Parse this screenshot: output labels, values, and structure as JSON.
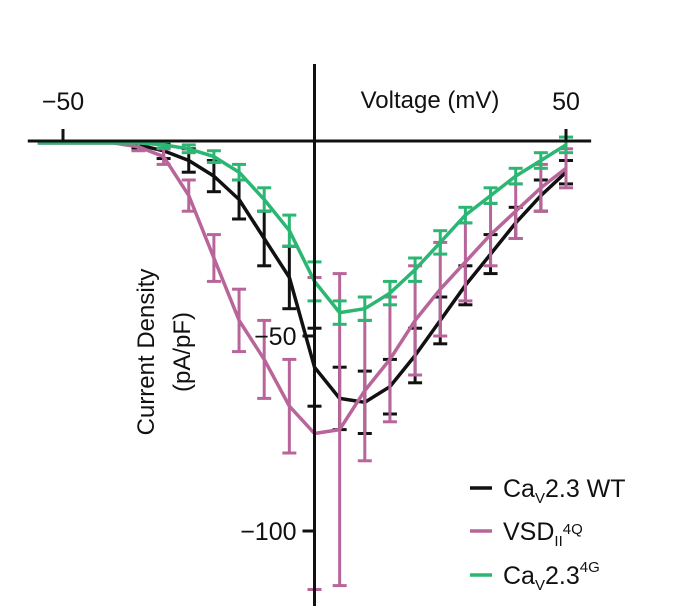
{
  "chart_data": {
    "type": "line",
    "xlabel": "Voltage (mV)",
    "ylabel_lines": [
      "Current Density",
      "(pA/pF)"
    ],
    "xlim": [
      -57,
      55
    ],
    "ylim": [
      -125,
      2
    ],
    "x_ticks": [
      {
        "value": -50,
        "label": "−50"
      },
      {
        "value": 50,
        "label": "50"
      }
    ],
    "y_ticks": [
      {
        "value": -50,
        "label": "−50"
      },
      {
        "value": -100,
        "label": "−100"
      }
    ],
    "x": [
      -55,
      -50,
      -45,
      -40,
      -35,
      -30,
      -25,
      -20,
      -15,
      -10,
      -5,
      0,
      5,
      10,
      15,
      20,
      25,
      30,
      35,
      40,
      45,
      50
    ],
    "series": [
      {
        "legend_main": "Ca",
        "legend_sub": "V",
        "legend_tail": "2.3 WT",
        "color": "#111111",
        "values": [
          -0.5,
          -0.5,
          -0.5,
          -0.5,
          -1,
          -2.5,
          -5,
          -9,
          -15,
          -25,
          -35,
          -58,
          -66,
          -67,
          -63,
          -55,
          -46,
          -37,
          -29,
          -21,
          -14,
          -8
        ],
        "errors": [
          0.3,
          0.3,
          0.3,
          0.5,
          1,
          2,
          3,
          4,
          5,
          7,
          8,
          10,
          8,
          8,
          7,
          7,
          6,
          5,
          5,
          4,
          4,
          3
        ]
      },
      {
        "legend_main": "VSD",
        "legend_sub": "II",
        "legend_sup": "4Q",
        "color": "#b8659a",
        "values": [
          -0.5,
          -0.5,
          -0.5,
          -0.5,
          -1.5,
          -4,
          -14,
          -30,
          -46,
          -56,
          -68,
          -75,
          -74,
          -64,
          -56,
          -46,
          -38,
          -31,
          -24,
          -18,
          -12,
          -7
        ],
        "errors": [
          0.3,
          0.3,
          0.3,
          0.5,
          1,
          2,
          4,
          6,
          8,
          10,
          12,
          40,
          40,
          18,
          16,
          14,
          12,
          10,
          8,
          7,
          6,
          5
        ]
      },
      {
        "legend_main": "Ca",
        "legend_sub": "V",
        "legend_tail": "2.3",
        "legend_sup": "4G",
        "color": "#2bb673",
        "values": [
          -0.5,
          -0.5,
          -0.5,
          -0.5,
          -0.5,
          -1,
          -2,
          -4,
          -8,
          -15,
          -23,
          -36,
          -44,
          -43,
          -39,
          -33,
          -26,
          -19,
          -14,
          -9,
          -5,
          -1
        ],
        "errors": [
          0.3,
          0.3,
          0.3,
          0.3,
          0.5,
          0.8,
          1,
          1.5,
          2,
          3,
          4,
          5,
          3,
          3,
          3,
          3,
          3,
          2,
          2,
          2,
          2,
          2
        ]
      }
    ],
    "legend_position": "bottom-right",
    "grid": false
  }
}
